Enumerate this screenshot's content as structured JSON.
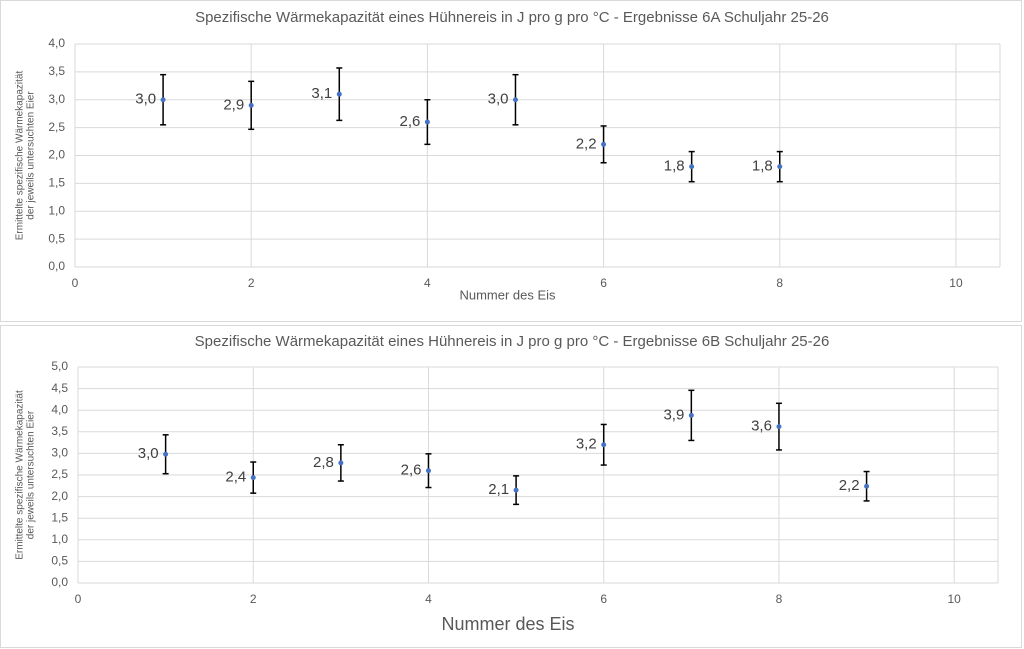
{
  "chart_data": [
    {
      "type": "scatter",
      "title": "Spezifische Wärmekapazität eines Hühnereis in J pro g pro °C - Ergebnisse 6A Schuljahr 25-26",
      "x_label": "Nummer des Eis",
      "y_label": [
        "Ermittelte spezifische Wärmekapazität",
        "der jeweils untersuchten Eier"
      ],
      "x": [
        1,
        2,
        3,
        4,
        5,
        6,
        7,
        8
      ],
      "values": [
        3.0,
        2.9,
        3.1,
        2.6,
        3.0,
        2.2,
        1.8,
        1.8
      ],
      "value_labels": [
        "3,0",
        "2,9",
        "3,1",
        "2,6",
        "3,0",
        "2,2",
        "1,8",
        "1,8"
      ],
      "errors": [
        0.45,
        0.43,
        0.47,
        0.4,
        0.45,
        0.33,
        0.27,
        0.27
      ],
      "color": "#4472c4",
      "xlim": [
        0,
        10.5
      ],
      "xticks": [
        0,
        2,
        4,
        6,
        8,
        10
      ],
      "ylim": [
        0,
        4
      ],
      "yticks": [
        {
          "value": 0,
          "label": "0,0"
        },
        {
          "value": 0.5,
          "label": "0,5"
        },
        {
          "value": 1,
          "label": "1,0"
        },
        {
          "value": 1.5,
          "label": "1,5"
        },
        {
          "value": 2,
          "label": "2,0"
        },
        {
          "value": 2.5,
          "label": "2,5"
        },
        {
          "value": 3,
          "label": "3,0"
        },
        {
          "value": 3.5,
          "label": "3,5"
        },
        {
          "value": 4,
          "label": "4,0"
        }
      ],
      "grid": true
    },
    {
      "type": "scatter",
      "title": "Spezifische Wärmekapazität eines Hühnereis in J pro g pro °C - Ergebnisse 6B Schuljahr 25-26",
      "x_label": "Nummer des Eis",
      "y_label": [
        "Ermittelte spezifische Wärmekapazität",
        "der jeweils untersuchten Eier"
      ],
      "x": [
        1,
        2,
        3,
        4,
        5,
        6,
        7,
        8,
        9
      ],
      "values": [
        2.98,
        2.44,
        2.78,
        2.6,
        2.15,
        3.2,
        3.88,
        3.62,
        2.24
      ],
      "value_labels": [
        "3,0",
        "2,4",
        "2,8",
        "2,6",
        "2,1",
        "3,2",
        "3,9",
        "3,6",
        "2,2"
      ],
      "errors": [
        0.45,
        0.36,
        0.42,
        0.39,
        0.33,
        0.47,
        0.58,
        0.54,
        0.34
      ],
      "color": "#4472c4",
      "xlim": [
        0,
        10.5
      ],
      "xticks": [
        0,
        2,
        4,
        6,
        8,
        10
      ],
      "ylim": [
        0,
        5
      ],
      "yticks": [
        {
          "value": 0,
          "label": "0,0"
        },
        {
          "value": 0.5,
          "label": "0,5"
        },
        {
          "value": 1,
          "label": "1,0"
        },
        {
          "value": 1.5,
          "label": "1,5"
        },
        {
          "value": 2,
          "label": "2,0"
        },
        {
          "value": 2.5,
          "label": "2,5"
        },
        {
          "value": 3,
          "label": "3,0"
        },
        {
          "value": 3.5,
          "label": "3,5"
        },
        {
          "value": 4,
          "label": "4,0"
        },
        {
          "value": 4.5,
          "label": "4,5"
        },
        {
          "value": 5,
          "label": "5,0"
        }
      ],
      "grid": true
    }
  ]
}
